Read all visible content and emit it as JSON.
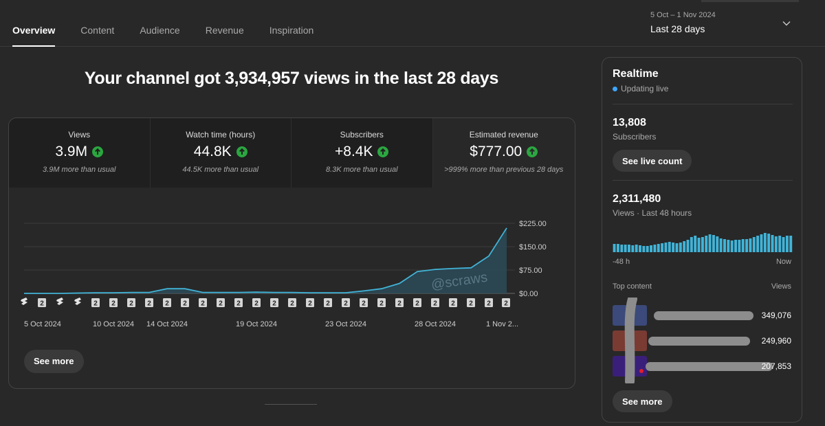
{
  "tabs": [
    "Overview",
    "Content",
    "Audience",
    "Revenue",
    "Inspiration"
  ],
  "date_range": {
    "sub": "5 Oct – 1 Nov 2024",
    "label": "Last 28 days"
  },
  "headline": "Your channel got 3,934,957 views in the last 28 days",
  "metrics": [
    {
      "label": "Views",
      "value": "3.9M",
      "note": "3.9M more than usual"
    },
    {
      "label": "Watch time (hours)",
      "value": "44.8K",
      "note": "44.5K more than usual"
    },
    {
      "label": "Subscribers",
      "value": "+8.4K",
      "note": "8.3K more than usual"
    },
    {
      "label": "Estimated revenue",
      "value": "$777.00",
      "note": ">999% more than previous 28 days"
    }
  ],
  "chart_data": {
    "type": "area",
    "title": "Estimated revenue",
    "ylabel": "",
    "ylim": [
      0,
      225
    ],
    "y_ticks": [
      "$225.00",
      "$150.00",
      "$75.00",
      "$0.00"
    ],
    "y_tick_values": [
      225,
      150,
      75,
      0
    ],
    "x_tick_labels": [
      "5 Oct 2024",
      "10 Oct 2024",
      "14 Oct 2024",
      "19 Oct 2024",
      "23 Oct 2024",
      "28 Oct 2024",
      "1 Nov 2..."
    ],
    "x_tick_index": [
      0,
      5,
      8,
      13,
      18,
      23,
      27
    ],
    "values": [
      0,
      0,
      0,
      1,
      2,
      2,
      3,
      3,
      15,
      15,
      3,
      3,
      3,
      4,
      3,
      3,
      2,
      2,
      2,
      8,
      15,
      32,
      70,
      77,
      80,
      82,
      120,
      210
    ],
    "markers": [
      "shorts",
      "2",
      "shorts",
      "shorts",
      "2",
      "2",
      "2",
      "2",
      "2",
      "2",
      "2",
      "2",
      "2",
      "2",
      "2",
      "2",
      "2",
      "2",
      "2",
      "2",
      "2",
      "2",
      "2",
      "2",
      "2",
      "2",
      "2",
      "2"
    ],
    "watermark": "@scraws"
  },
  "see_more": "See more",
  "realtime": {
    "title": "Realtime",
    "live": "Updating live",
    "subs_value": "13,808",
    "subs_label": "Subscribers",
    "see_live": "See live count",
    "views_value": "2,311,480",
    "views_label": "Views · Last 48 hours",
    "bars": [
      12,
      12,
      11,
      11,
      11,
      10,
      11,
      10,
      9,
      9,
      10,
      11,
      12,
      13,
      14,
      15,
      14,
      13,
      14,
      16,
      18,
      22,
      24,
      21,
      22,
      24,
      26,
      25,
      23,
      20,
      19,
      18,
      17,
      18,
      18,
      19,
      19,
      20,
      22,
      24,
      26,
      28,
      27,
      25,
      23,
      24,
      22,
      24,
      24
    ],
    "axis_left": "-48 h",
    "axis_right": "Now",
    "top_content_label": "Top content",
    "views_col_label": "Views",
    "top_content": [
      {
        "views": "349,076",
        "thumb": "#3b4a7a"
      },
      {
        "views": "249,960",
        "thumb": "#7a3b33"
      },
      {
        "views": "207,853",
        "thumb": "#3a1f7a"
      }
    ],
    "see_more": "See more"
  },
  "colors": {
    "accent": "#3ea6ff",
    "up": "#2ba640",
    "line": "#41b4d8",
    "area": "#2b4a58"
  }
}
